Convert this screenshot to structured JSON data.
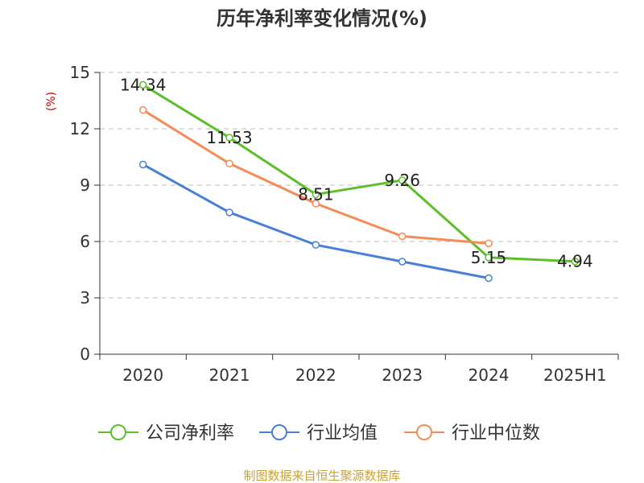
{
  "chart_data": {
    "type": "line",
    "title": "历年净利率变化情况(%)",
    "unit_label": "(%)",
    "categories": [
      "2020",
      "2021",
      "2022",
      "2023",
      "2024",
      "2025H1"
    ],
    "ylim": [
      0,
      15
    ],
    "yticks": [
      0,
      3,
      6,
      9,
      12,
      15
    ],
    "ytick_labels": [
      "0",
      "3",
      "6",
      "9",
      "12",
      "15"
    ],
    "grid": true,
    "legend_position": "bottom",
    "series": [
      {
        "name": "公司净利率",
        "color": "#5cbf2a",
        "values": [
          14.34,
          11.53,
          8.51,
          9.26,
          5.15,
          4.94
        ],
        "labels": [
          "14.34",
          "11.53",
          "8.51",
          "9.26",
          "5.15",
          "4.94"
        ]
      },
      {
        "name": "行业均值",
        "color": "#4a7fd6",
        "values": [
          10.1,
          7.55,
          5.82,
          4.93,
          4.05,
          null
        ],
        "labels": null
      },
      {
        "name": "行业中位数",
        "color": "#f58b57",
        "values": [
          13.0,
          10.15,
          8.02,
          6.28,
          5.9,
          null
        ],
        "labels": null
      }
    ],
    "source": "制图数据来自恒生聚源数据库"
  }
}
